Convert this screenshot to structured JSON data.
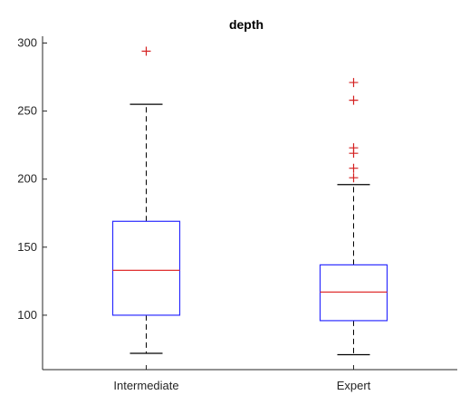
{
  "chart_data": {
    "type": "boxplot",
    "title": "depth",
    "xlabel": "",
    "ylabel": "",
    "categories": [
      "Intermediate",
      "Expert"
    ],
    "ylim": [
      60,
      305
    ],
    "yticks": [
      100,
      150,
      200,
      250,
      300
    ],
    "grid": false,
    "box_color": "#2b2bff",
    "median_color": "#e03030",
    "whisker_color": "#000000",
    "outlier_color": "#d42020",
    "boxes": [
      {
        "category": "Intermediate",
        "whisker_low": 72,
        "q1": 100,
        "median": 133,
        "q3": 169,
        "whisker_high": 255,
        "outliers": [
          294
        ]
      },
      {
        "category": "Expert",
        "whisker_low": 71,
        "q1": 96,
        "median": 117,
        "q3": 137,
        "whisker_high": 196,
        "outliers": [
          201,
          208,
          219,
          223,
          258,
          271
        ]
      }
    ]
  }
}
